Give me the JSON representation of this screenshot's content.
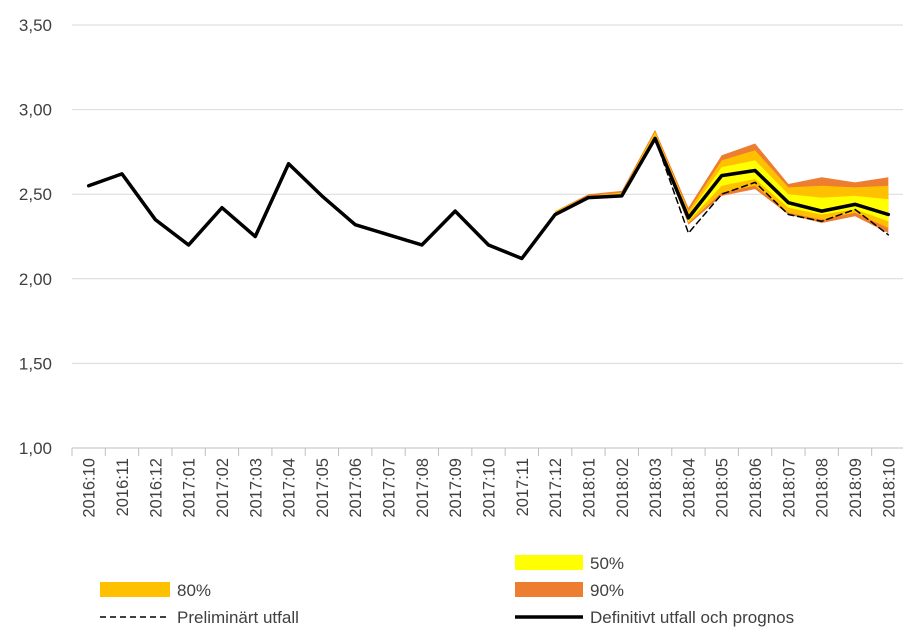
{
  "chart_data": {
    "type": "line",
    "title": "",
    "xlabel": "",
    "ylabel": "",
    "ylim": [
      1.0,
      3.5
    ],
    "yticks": [
      "1,00",
      "1,50",
      "2,00",
      "2,50",
      "3,00",
      "3,50"
    ],
    "grid": "horizontal",
    "categories": [
      "2016:10",
      "2016:11",
      "2016:12",
      "2017:01",
      "2017:02",
      "2017:03",
      "2017:04",
      "2017:05",
      "2017:06",
      "2017:07",
      "2017:08",
      "2017:09",
      "2017:10",
      "2017:11",
      "2017:12",
      "2018:01",
      "2018:02",
      "2018:03",
      "2018:04",
      "2018:05",
      "2018:06",
      "2018:07",
      "2018:08",
      "2018:09",
      "2018:10"
    ],
    "series": [
      {
        "name": "Definitivt utfall och prognos",
        "color": "#000000",
        "style": "solid",
        "values": [
          2.55,
          2.62,
          2.35,
          2.2,
          2.42,
          2.25,
          2.68,
          2.49,
          2.32,
          2.26,
          2.2,
          2.4,
          2.2,
          2.12,
          2.38,
          2.48,
          2.49,
          2.83,
          2.36,
          2.61,
          2.64,
          2.45,
          2.4,
          2.44,
          2.38
        ]
      },
      {
        "name": "Preliminärt utfall",
        "color": "#000000",
        "style": "dashed",
        "values": [
          null,
          null,
          null,
          null,
          null,
          null,
          null,
          null,
          null,
          null,
          null,
          null,
          null,
          null,
          2.38,
          2.48,
          2.49,
          2.83,
          2.27,
          2.5,
          2.57,
          2.38,
          2.34,
          2.41,
          2.26
        ]
      }
    ],
    "bands": [
      {
        "name": "90%",
        "color": "#ED7D31",
        "start_index": 14,
        "lower": [
          2.38,
          2.48,
          2.49,
          2.83,
          2.32,
          2.49,
          2.53,
          2.38,
          2.33,
          2.37,
          2.27
        ],
        "upper": [
          2.4,
          2.5,
          2.52,
          2.88,
          2.42,
          2.73,
          2.8,
          2.56,
          2.6,
          2.57,
          2.6
        ]
      },
      {
        "name": "80%",
        "color": "#FFC000",
        "start_index": 14,
        "lower": [
          2.38,
          2.48,
          2.49,
          2.83,
          2.33,
          2.51,
          2.55,
          2.39,
          2.35,
          2.39,
          2.3
        ],
        "upper": [
          2.4,
          2.49,
          2.51,
          2.87,
          2.4,
          2.7,
          2.76,
          2.54,
          2.55,
          2.54,
          2.55
        ]
      },
      {
        "name": "50%",
        "color": "#FFFF00",
        "start_index": 14,
        "lower": [
          2.38,
          2.48,
          2.49,
          2.83,
          2.34,
          2.55,
          2.59,
          2.42,
          2.38,
          2.41,
          2.34
        ],
        "upper": [
          2.39,
          2.49,
          2.5,
          2.85,
          2.38,
          2.66,
          2.7,
          2.5,
          2.48,
          2.49,
          2.47
        ]
      }
    ],
    "legend": {
      "placement": "bottom",
      "entries": [
        {
          "label": "50%",
          "kind": "patch",
          "color": "#FFFF00"
        },
        {
          "label": "80%",
          "kind": "patch",
          "color": "#FFC000"
        },
        {
          "label": "90%",
          "kind": "patch",
          "color": "#ED7D31"
        },
        {
          "label": "Preliminärt utfall",
          "kind": "dashed-line",
          "color": "#000000"
        },
        {
          "label": "Definitivt utfall och prognos",
          "kind": "solid-line",
          "color": "#000000"
        }
      ]
    }
  }
}
